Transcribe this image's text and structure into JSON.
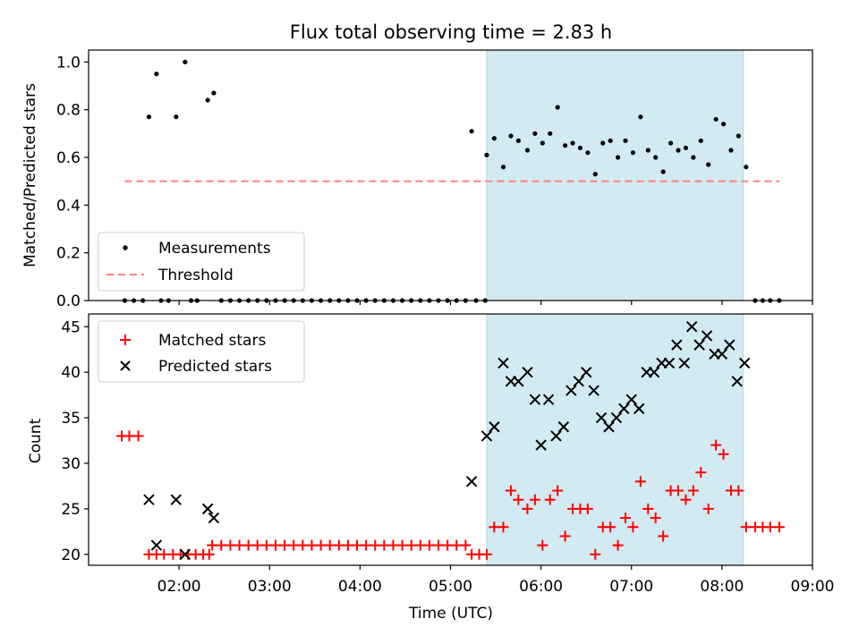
{
  "title": "Flux total observing time = 2.83 h",
  "colors": {
    "shade": "#add8e6",
    "measurement": "#000000",
    "threshold": "#ff7f7f",
    "matched": "#ff0000",
    "predicted": "#000000"
  },
  "chart_data": [
    {
      "type": "scatter",
      "ylabel": "Matched/Predicted stars",
      "xlim": [
        "01:00",
        "09:00"
      ],
      "ylim": [
        0,
        1.05
      ],
      "yticks": [
        "0.0",
        "0.2",
        "0.4",
        "0.6",
        "0.8",
        "1.0"
      ],
      "legend": "lower-left",
      "shaded_interval": [
        "05:24",
        "08:14"
      ],
      "threshold": {
        "name": "Threshold",
        "y": 0.5,
        "x_range": [
          "01:24",
          "08:38"
        ]
      },
      "series": [
        {
          "name": "Measurements",
          "points": [
            [
              "01:24",
              0
            ],
            [
              "01:30",
              0
            ],
            [
              "01:36",
              0
            ],
            [
              "01:40",
              0.77
            ],
            [
              "01:45",
              0.95
            ],
            [
              "01:48",
              0
            ],
            [
              "01:53",
              0
            ],
            [
              "01:58",
              0.77
            ],
            [
              "02:04",
              1.0
            ],
            [
              "02:08",
              0
            ],
            [
              "02:12",
              0
            ],
            [
              "02:19",
              0.84
            ],
            [
              "02:23",
              0.87
            ],
            [
              "02:28",
              0
            ],
            [
              "02:34",
              0
            ],
            [
              "02:40",
              0
            ],
            [
              "02:46",
              0
            ],
            [
              "02:52",
              0
            ],
            [
              "02:58",
              0
            ],
            [
              "03:04",
              0
            ],
            [
              "03:10",
              0
            ],
            [
              "03:16",
              0
            ],
            [
              "03:22",
              0
            ],
            [
              "03:28",
              0
            ],
            [
              "03:34",
              0
            ],
            [
              "03:40",
              0
            ],
            [
              "03:46",
              0
            ],
            [
              "03:52",
              0
            ],
            [
              "03:58",
              0
            ],
            [
              "04:04",
              0
            ],
            [
              "04:10",
              0
            ],
            [
              "04:16",
              0
            ],
            [
              "04:22",
              0
            ],
            [
              "04:28",
              0
            ],
            [
              "04:34",
              0
            ],
            [
              "04:40",
              0
            ],
            [
              "04:46",
              0
            ],
            [
              "04:52",
              0
            ],
            [
              "04:58",
              0
            ],
            [
              "05:04",
              0
            ],
            [
              "05:10",
              0
            ],
            [
              "05:14",
              0.71
            ],
            [
              "05:17",
              0
            ],
            [
              "05:23",
              0
            ],
            [
              "05:24",
              0.61
            ],
            [
              "05:29",
              0.68
            ],
            [
              "05:35",
              0.56
            ],
            [
              "05:40",
              0.69
            ],
            [
              "05:45",
              0.67
            ],
            [
              "05:51",
              0.63
            ],
            [
              "05:56",
              0.7
            ],
            [
              "06:01",
              0.66
            ],
            [
              "06:06",
              0.7
            ],
            [
              "06:11",
              0.81
            ],
            [
              "06:16",
              0.65
            ],
            [
              "06:21",
              0.66
            ],
            [
              "06:26",
              0.64
            ],
            [
              "06:31",
              0.62
            ],
            [
              "06:36",
              0.53
            ],
            [
              "06:41",
              0.66
            ],
            [
              "06:46",
              0.67
            ],
            [
              "06:51",
              0.6
            ],
            [
              "06:56",
              0.67
            ],
            [
              "07:01",
              0.62
            ],
            [
              "07:06",
              0.77
            ],
            [
              "07:11",
              0.63
            ],
            [
              "07:16",
              0.6
            ],
            [
              "07:21",
              0.54
            ],
            [
              "07:26",
              0.66
            ],
            [
              "07:31",
              0.63
            ],
            [
              "07:36",
              0.64
            ],
            [
              "07:41",
              0.6
            ],
            [
              "07:46",
              0.67
            ],
            [
              "07:51",
              0.57
            ],
            [
              "07:56",
              0.76
            ],
            [
              "08:01",
              0.74
            ],
            [
              "08:06",
              0.63
            ],
            [
              "08:11",
              0.69
            ],
            [
              "08:16",
              0.56
            ],
            [
              "08:22",
              0
            ],
            [
              "08:27",
              0
            ],
            [
              "08:32",
              0
            ],
            [
              "08:38",
              0
            ]
          ]
        }
      ]
    },
    {
      "type": "scatter",
      "xlabel": "Time (UTC)",
      "ylabel": "Count",
      "xlim": [
        "01:00",
        "09:00"
      ],
      "ylim": [
        18.8,
        46.4
      ],
      "xticks": [
        "02:00",
        "03:00",
        "04:00",
        "05:00",
        "06:00",
        "07:00",
        "08:00",
        "09:00"
      ],
      "yticks": [
        "20",
        "25",
        "30",
        "35",
        "40",
        "45"
      ],
      "legend": "upper-left",
      "shaded_interval": [
        "05:24",
        "08:14"
      ],
      "series": [
        {
          "name": "Matched stars",
          "points": [
            [
              "01:22",
              33
            ],
            [
              "01:27",
              33
            ],
            [
              "01:33",
              33
            ],
            [
              "01:40",
              20
            ],
            [
              "01:45",
              20
            ],
            [
              "01:50",
              20
            ],
            [
              "01:56",
              20
            ],
            [
              "02:01",
              20
            ],
            [
              "02:06",
              20
            ],
            [
              "02:11",
              20
            ],
            [
              "02:16",
              20
            ],
            [
              "02:20",
              20
            ],
            [
              "02:22",
              21
            ],
            [
              "02:28",
              21
            ],
            [
              "02:34",
              21
            ],
            [
              "02:40",
              21
            ],
            [
              "02:46",
              21
            ],
            [
              "02:52",
              21
            ],
            [
              "02:58",
              21
            ],
            [
              "03:04",
              21
            ],
            [
              "03:10",
              21
            ],
            [
              "03:16",
              21
            ],
            [
              "03:22",
              21
            ],
            [
              "03:28",
              21
            ],
            [
              "03:34",
              21
            ],
            [
              "03:40",
              21
            ],
            [
              "03:46",
              21
            ],
            [
              "03:52",
              21
            ],
            [
              "03:58",
              21
            ],
            [
              "04:04",
              21
            ],
            [
              "04:10",
              21
            ],
            [
              "04:16",
              21
            ],
            [
              "04:22",
              21
            ],
            [
              "04:28",
              21
            ],
            [
              "04:34",
              21
            ],
            [
              "04:40",
              21
            ],
            [
              "04:46",
              21
            ],
            [
              "04:52",
              21
            ],
            [
              "04:58",
              21
            ],
            [
              "05:04",
              21
            ],
            [
              "05:10",
              21
            ],
            [
              "05:14",
              20
            ],
            [
              "05:19",
              20
            ],
            [
              "05:24",
              20
            ],
            [
              "05:29",
              23
            ],
            [
              "05:35",
              23
            ],
            [
              "05:40",
              27
            ],
            [
              "05:45",
              26
            ],
            [
              "05:51",
              25
            ],
            [
              "05:56",
              26
            ],
            [
              "06:01",
              21
            ],
            [
              "06:06",
              26
            ],
            [
              "06:11",
              27
            ],
            [
              "06:16",
              22
            ],
            [
              "06:21",
              25
            ],
            [
              "06:26",
              25
            ],
            [
              "06:31",
              25
            ],
            [
              "06:36",
              20
            ],
            [
              "06:41",
              23
            ],
            [
              "06:46",
              23
            ],
            [
              "06:51",
              21
            ],
            [
              "06:56",
              24
            ],
            [
              "07:01",
              23
            ],
            [
              "07:06",
              28
            ],
            [
              "07:11",
              25
            ],
            [
              "07:16",
              24
            ],
            [
              "07:21",
              22
            ],
            [
              "07:26",
              27
            ],
            [
              "07:31",
              27
            ],
            [
              "07:36",
              26
            ],
            [
              "07:41",
              27
            ],
            [
              "07:46",
              29
            ],
            [
              "07:51",
              25
            ],
            [
              "07:56",
              32
            ],
            [
              "08:01",
              31
            ],
            [
              "08:06",
              27
            ],
            [
              "08:11",
              27
            ],
            [
              "08:16",
              23
            ],
            [
              "08:22",
              23
            ],
            [
              "08:27",
              23
            ],
            [
              "08:32",
              23
            ],
            [
              "08:38",
              23
            ]
          ]
        },
        {
          "name": "Predicted stars",
          "points": [
            [
              "01:40",
              26
            ],
            [
              "01:45",
              21
            ],
            [
              "01:58",
              26
            ],
            [
              "02:04",
              20
            ],
            [
              "02:19",
              25
            ],
            [
              "02:23",
              24
            ],
            [
              "05:14",
              28
            ],
            [
              "05:24",
              33
            ],
            [
              "05:29",
              34
            ],
            [
              "05:35",
              41
            ],
            [
              "05:40",
              39
            ],
            [
              "05:45",
              39
            ],
            [
              "05:51",
              40
            ],
            [
              "05:56",
              37
            ],
            [
              "06:00",
              32
            ],
            [
              "06:05",
              37
            ],
            [
              "06:10",
              33
            ],
            [
              "06:15",
              34
            ],
            [
              "06:20",
              38
            ],
            [
              "06:25",
              39
            ],
            [
              "06:30",
              40
            ],
            [
              "06:35",
              38
            ],
            [
              "06:40",
              35
            ],
            [
              "06:45",
              34
            ],
            [
              "06:50",
              35
            ],
            [
              "06:55",
              36
            ],
            [
              "07:00",
              37
            ],
            [
              "07:05",
              36
            ],
            [
              "07:10",
              40
            ],
            [
              "07:15",
              40
            ],
            [
              "07:20",
              41
            ],
            [
              "07:25",
              41
            ],
            [
              "07:30",
              43
            ],
            [
              "07:35",
              41
            ],
            [
              "07:40",
              45
            ],
            [
              "07:45",
              43
            ],
            [
              "07:50",
              44
            ],
            [
              "07:55",
              42
            ],
            [
              "08:00",
              42
            ],
            [
              "08:05",
              43
            ],
            [
              "08:10",
              39
            ],
            [
              "08:15",
              41
            ]
          ]
        }
      ]
    }
  ]
}
